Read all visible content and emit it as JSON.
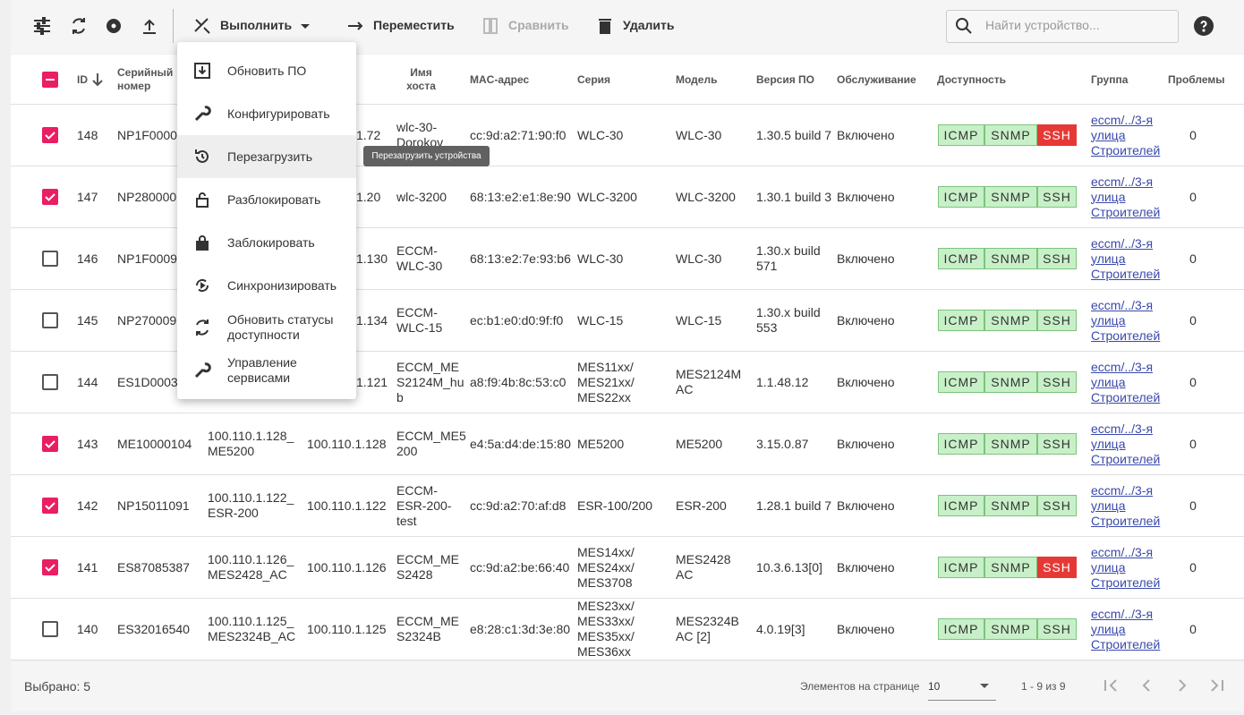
{
  "toolbar": {
    "execute": "Выполнить",
    "move": "Переместить",
    "compare": "Сравнить",
    "delete": "Удалить",
    "search_placeholder": "Найти устройство..."
  },
  "menu": {
    "items": [
      "Обновить ПО",
      "Конфигурировать",
      "Перезагрузить",
      "Разблокировать",
      "Заблокировать",
      "Синхронизировать",
      "Обновить статусы доступности",
      "Управление сервисами"
    ],
    "tooltip": "Перезагрузить устройства"
  },
  "table": {
    "headers": [
      "ID",
      "Серийный номер",
      "Имя хоста",
      "MAC-адрес",
      "Серия",
      "Модель",
      "Версия ПО",
      "Обслуживание",
      "Доступность",
      "Группа",
      "Проблемы"
    ],
    "availability_labels": [
      "ICMP",
      "SNMP",
      "SSH"
    ],
    "rows": [
      {
        "checked": true,
        "id": 148,
        "serial": "NP1F0000",
        "ip": "1.72",
        "host": "wlc-30-Dorokov",
        "mac": "cc:9d:a2:71:90:f0",
        "series": "WLC-30",
        "model": "WLC-30",
        "fw": "1.30.5 build 7",
        "service": "Включено",
        "ssh_ok": false,
        "group": "eccm/../3-я улица Строителей",
        "problems": 0
      },
      {
        "checked": true,
        "id": 147,
        "serial": "NP280000",
        "ip": "1.20",
        "host": "wlc-3200",
        "mac": "68:13:e2:e1:8e:90",
        "series": "WLC-3200",
        "model": "WLC-3200",
        "fw": "1.30.1 build 3",
        "service": "Включено",
        "ssh_ok": true,
        "group": "eccm/../3-я улица Строителей",
        "problems": 0
      },
      {
        "checked": false,
        "id": 146,
        "serial": "NP1F0009",
        "ip": "1.130",
        "host": "ECCM-WLC-30",
        "mac": "68:13:e2:7e:93:b6",
        "series": "WLC-30",
        "model": "WLC-30",
        "fw": "1.30.x build 571",
        "service": "Включено",
        "ssh_ok": true,
        "group": "eccm/../3-я улица Строителей",
        "problems": 0
      },
      {
        "checked": false,
        "id": 145,
        "serial": "NP270009",
        "ip": "1.134",
        "host": "ECCM-WLC-15",
        "mac": "ec:b1:e0:d0:9f:f0",
        "series": "WLC-15",
        "model": "WLC-15",
        "fw": "1.30.x build 553",
        "service": "Включено",
        "ssh_ok": true,
        "group": "eccm/../3-я улица Строителей",
        "problems": 0
      },
      {
        "checked": false,
        "id": 144,
        "serial": "ES1D0003",
        "ip": "1.121",
        "host": "ECCM_MES2124M_hub",
        "mac": "a8:f9:4b:8c:53:c0",
        "series": "MES11xx/\nMES21xx/\nMES22xx",
        "model": "MES2124MAC",
        "fw": "1.1.48.12",
        "service": "Включено",
        "ssh_ok": true,
        "group": "eccm/../3-я улица Строителей",
        "problems": 0
      },
      {
        "checked": true,
        "id": 143,
        "serial": "ME10000104",
        "name": "100.110.1.128_ME5200",
        "ip": "100.110.1.128",
        "host": "ECCM_ME5200",
        "mac": "e4:5a:d4:de:15:80",
        "series": "ME5200",
        "model": "ME5200",
        "fw": "3.15.0.87",
        "service": "Включено",
        "ssh_ok": true,
        "group": "eccm/../3-я улица Строителей",
        "problems": 0
      },
      {
        "checked": true,
        "id": 142,
        "serial": "NP15011091",
        "name": "100.110.1.122_ESR-200",
        "ip": "100.110.1.122",
        "host": "ECCM-ESR-200-test",
        "mac": "cc:9d:a2:70:af:d8",
        "series": "ESR-100/200",
        "model": "ESR-200",
        "fw": "1.28.1 build 7",
        "service": "Включено",
        "ssh_ok": true,
        "group": "eccm/../3-я улица Строителей",
        "problems": 0
      },
      {
        "checked": true,
        "id": 141,
        "serial": "ES87085387",
        "name": "100.110.1.126_MES2428_AC",
        "ip": "100.110.1.126",
        "host": "ECCM_MES2428",
        "mac": "cc:9d:a2:be:66:40",
        "series": "MES14xx/\nMES24xx/\nMES3708",
        "model": "MES2428 AC",
        "fw": "10.3.6.13[0]",
        "service": "Включено",
        "ssh_ok": false,
        "group": "eccm/../3-я улица Строителей",
        "problems": 0
      },
      {
        "checked": false,
        "id": 140,
        "serial": "ES32016540",
        "name": "100.110.1.125_MES2324B_AC",
        "ip": "100.110.1.125",
        "host": "ECCM_MES2324B",
        "mac": "e8:28:c1:3d:3e:80",
        "series": "MES23xx/\nMES33xx/\nMES35xx/\nMES36xx",
        "model": "MES2324B AC [2]",
        "fw": "4.0.19[3]",
        "service": "Включено",
        "ssh_ok": true,
        "group": "eccm/../3-я улица Строителей",
        "problems": 0
      }
    ]
  },
  "footer": {
    "selected": "Выбрано: 5",
    "page_size_label": "Элементов на странице",
    "page_size": "10",
    "range": "1 - 9 из 9"
  }
}
